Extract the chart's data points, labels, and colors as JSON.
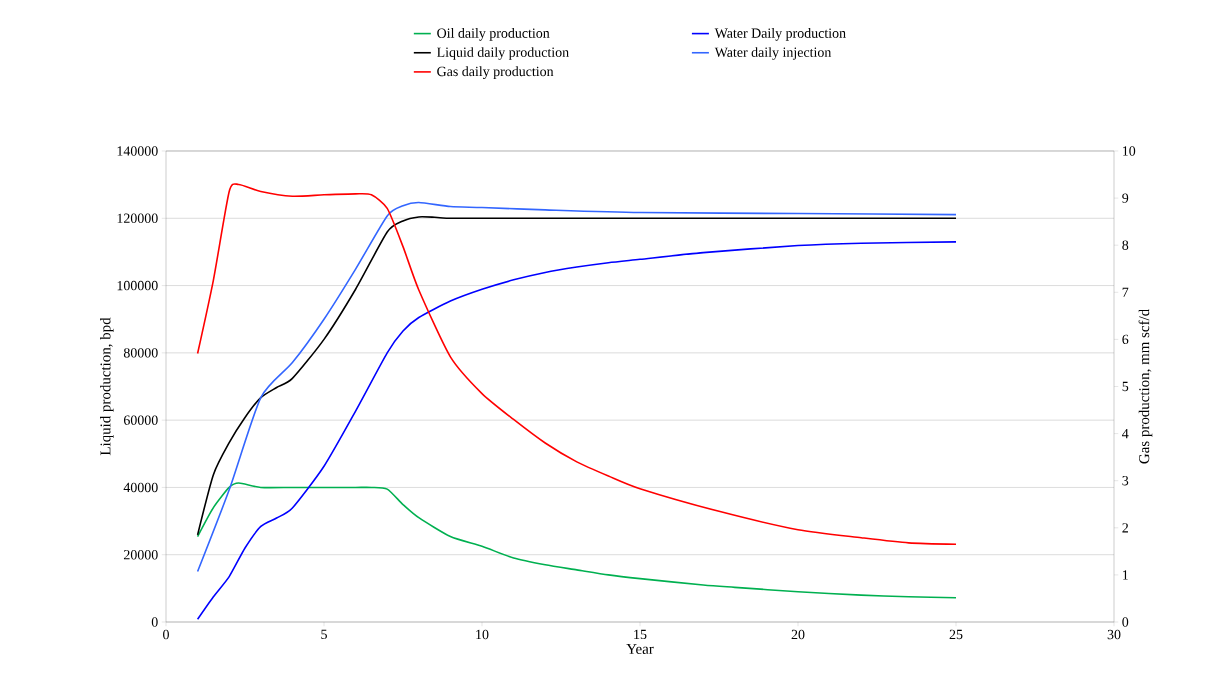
{
  "chart_data": {
    "type": "line",
    "xlabel": "Year",
    "ylabel": "Liquid production, bpd",
    "y2label": "Gas production, mm scf/d",
    "xlim": [
      0,
      30
    ],
    "xticks": [
      0,
      5,
      10,
      15,
      20,
      25,
      30
    ],
    "ylim": [
      0,
      140000
    ],
    "yticks": [
      0,
      20000,
      40000,
      60000,
      80000,
      100000,
      120000,
      140000
    ],
    "y2lim": [
      0,
      10
    ],
    "y2ticks": [
      0,
      1,
      2,
      3,
      4,
      5,
      6,
      7,
      8,
      9,
      10
    ],
    "grid": "y",
    "legend": "top",
    "series": [
      {
        "name": "Oil daily production",
        "color": "#00b050",
        "x": [
          1,
          1.5,
          2,
          2.3,
          3,
          4,
          5,
          6,
          6.5,
          7,
          7.5,
          8,
          9,
          10,
          11,
          12,
          13,
          14,
          15,
          17,
          18,
          20,
          22,
          23.5,
          25
        ],
        "values": [
          25400,
          34000,
          40000,
          41300,
          40000,
          40000,
          40000,
          40000,
          40000,
          39500,
          34900,
          31000,
          25400,
          22500,
          19000,
          17000,
          15500,
          14000,
          12900,
          11000,
          10300,
          9000,
          8000,
          7500,
          7200
        ]
      },
      {
        "name": "Water Daily production",
        "color": "#0000ff",
        "x": [
          1,
          1.5,
          2,
          2.5,
          3,
          3.5,
          4,
          5,
          6,
          7,
          7.5,
          8,
          9,
          10,
          11,
          12,
          13,
          14,
          15,
          17,
          20,
          22,
          25
        ],
        "values": [
          800,
          7500,
          13500,
          22000,
          28400,
          30900,
          33900,
          46300,
          62700,
          80000,
          86500,
          90500,
          95400,
          98900,
          101700,
          103900,
          105500,
          106800,
          107800,
          109800,
          111900,
          112600,
          113000
        ]
      },
      {
        "name": "Liquid daily production",
        "color": "#000000",
        "x": [
          1,
          1.5,
          2,
          2.5,
          3,
          3.5,
          4,
          5,
          6,
          7,
          7.5,
          8,
          8.5,
          9,
          12,
          15,
          20,
          25
        ],
        "values": [
          25900,
          43800,
          53300,
          60800,
          66700,
          69700,
          72400,
          84000,
          98900,
          115900,
          119200,
          120400,
          120300,
          120000,
          120000,
          120000,
          120000,
          120000
        ]
      },
      {
        "name": "Water daily injection",
        "color": "#3366ff",
        "x": [
          1,
          2,
          3,
          4,
          5,
          6,
          7,
          7.5,
          8,
          9,
          10,
          12,
          15,
          20,
          25
        ],
        "values": [
          15000,
          39300,
          66700,
          77100,
          90000,
          104900,
          120700,
          123700,
          124700,
          123500,
          123200,
          122500,
          121700,
          121400,
          121100
        ]
      },
      {
        "name": "Gas daily production",
        "color": "#ff0000",
        "axis": "y2",
        "x": [
          1,
          1.5,
          2,
          2.3,
          3,
          4,
          5,
          6,
          6.5,
          7,
          7.5,
          8,
          9,
          10,
          11,
          12,
          13,
          14,
          15,
          17.5,
          20,
          22,
          23.5,
          25
        ],
        "values": [
          5.7,
          7.26,
          9.14,
          9.29,
          9.14,
          9.04,
          9.07,
          9.09,
          9.07,
          8.78,
          7.97,
          7.05,
          5.63,
          4.85,
          4.3,
          3.8,
          3.4,
          3.1,
          2.83,
          2.35,
          1.96,
          1.79,
          1.68,
          1.65
        ]
      }
    ]
  }
}
